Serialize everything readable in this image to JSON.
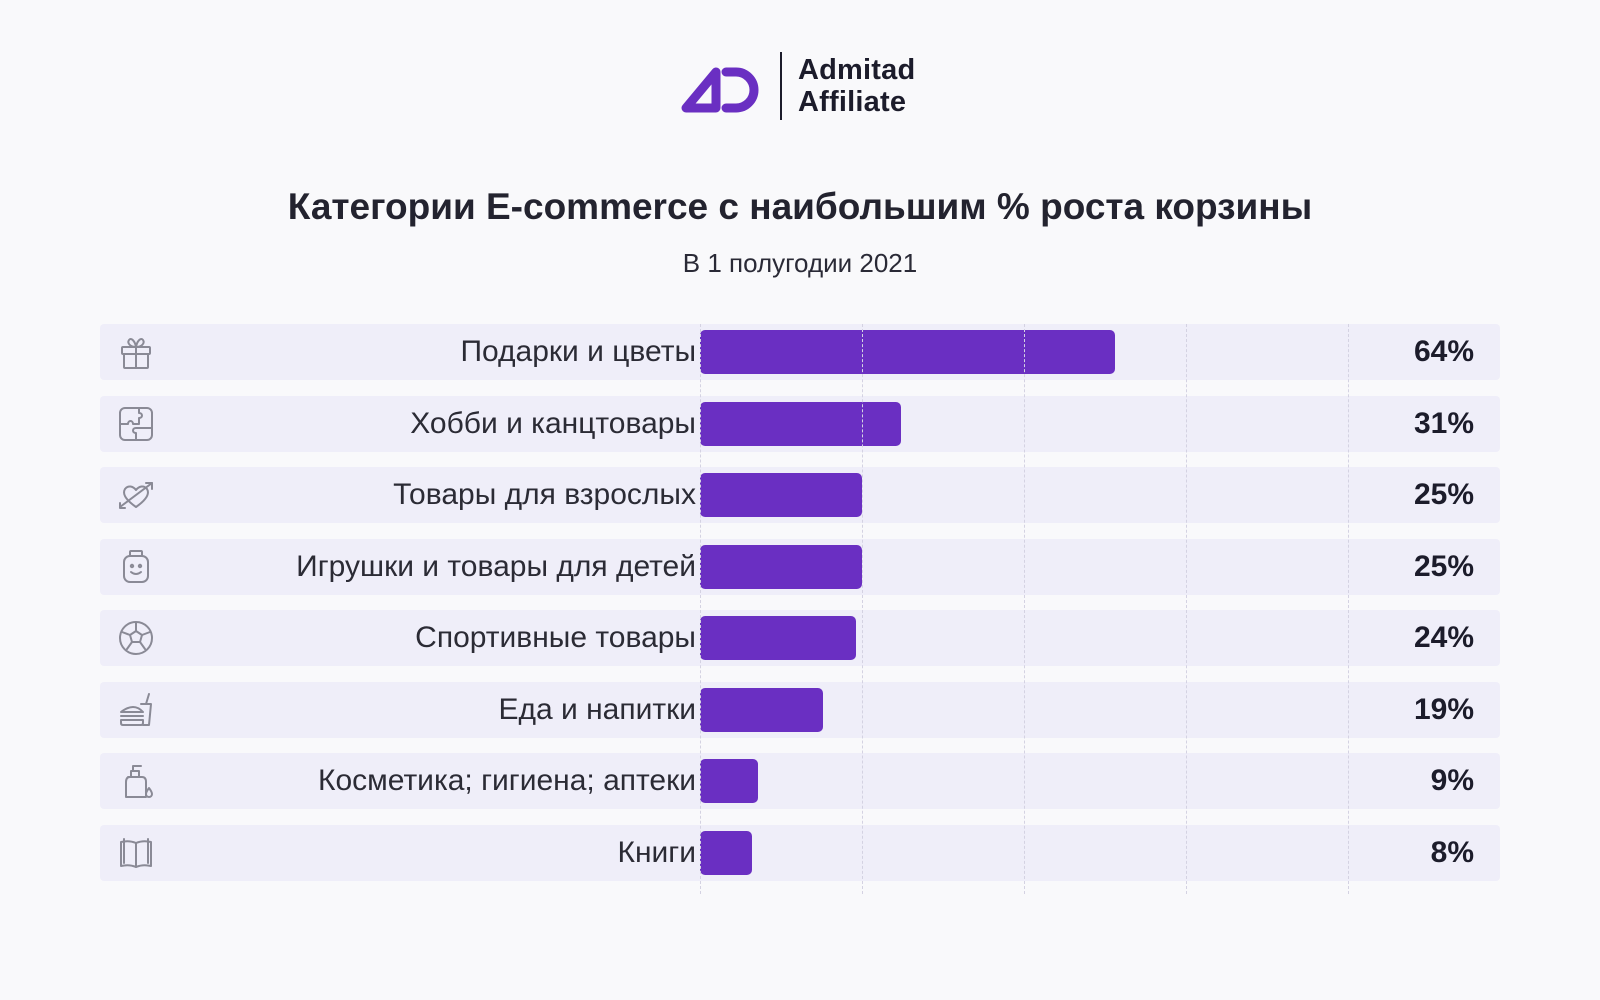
{
  "logo": {
    "line1": "Admitad",
    "line2": "Affiliate",
    "mark_color": "#6a2fc2"
  },
  "title": "Категории E-commerce с наибольшим % роста корзины",
  "subtitle": "В 1 полугодии 2021",
  "colors": {
    "bar": "#6a2fc2",
    "row_bg": "#efeef9",
    "grid": "#d4d2e2"
  },
  "chart_data": {
    "type": "bar",
    "orientation": "horizontal",
    "title": "Категории E-commerce с наибольшим % роста корзины",
    "subtitle": "В 1 полугодии 2021",
    "categories": [
      "Подарки и цветы",
      "Хобби и канцтовары",
      "Товары для взрослых",
      "Игрушки и товары для детей",
      "Спортивные товары",
      "Еда и напитки",
      "Косметика; гигиена; аптеки",
      "Книги"
    ],
    "values": [
      64,
      31,
      25,
      25,
      24,
      19,
      9,
      8
    ],
    "value_labels": [
      "64%",
      "31%",
      "25%",
      "25%",
      "24%",
      "19%",
      "9%",
      "8%"
    ],
    "icons": [
      "gift-icon",
      "puzzle-icon",
      "heart-arrow-icon",
      "toy-icon",
      "soccer-ball-icon",
      "food-drink-icon",
      "soap-bottle-icon",
      "book-icon"
    ],
    "xlim": [
      0,
      100
    ],
    "grid": true,
    "legend": "none"
  }
}
